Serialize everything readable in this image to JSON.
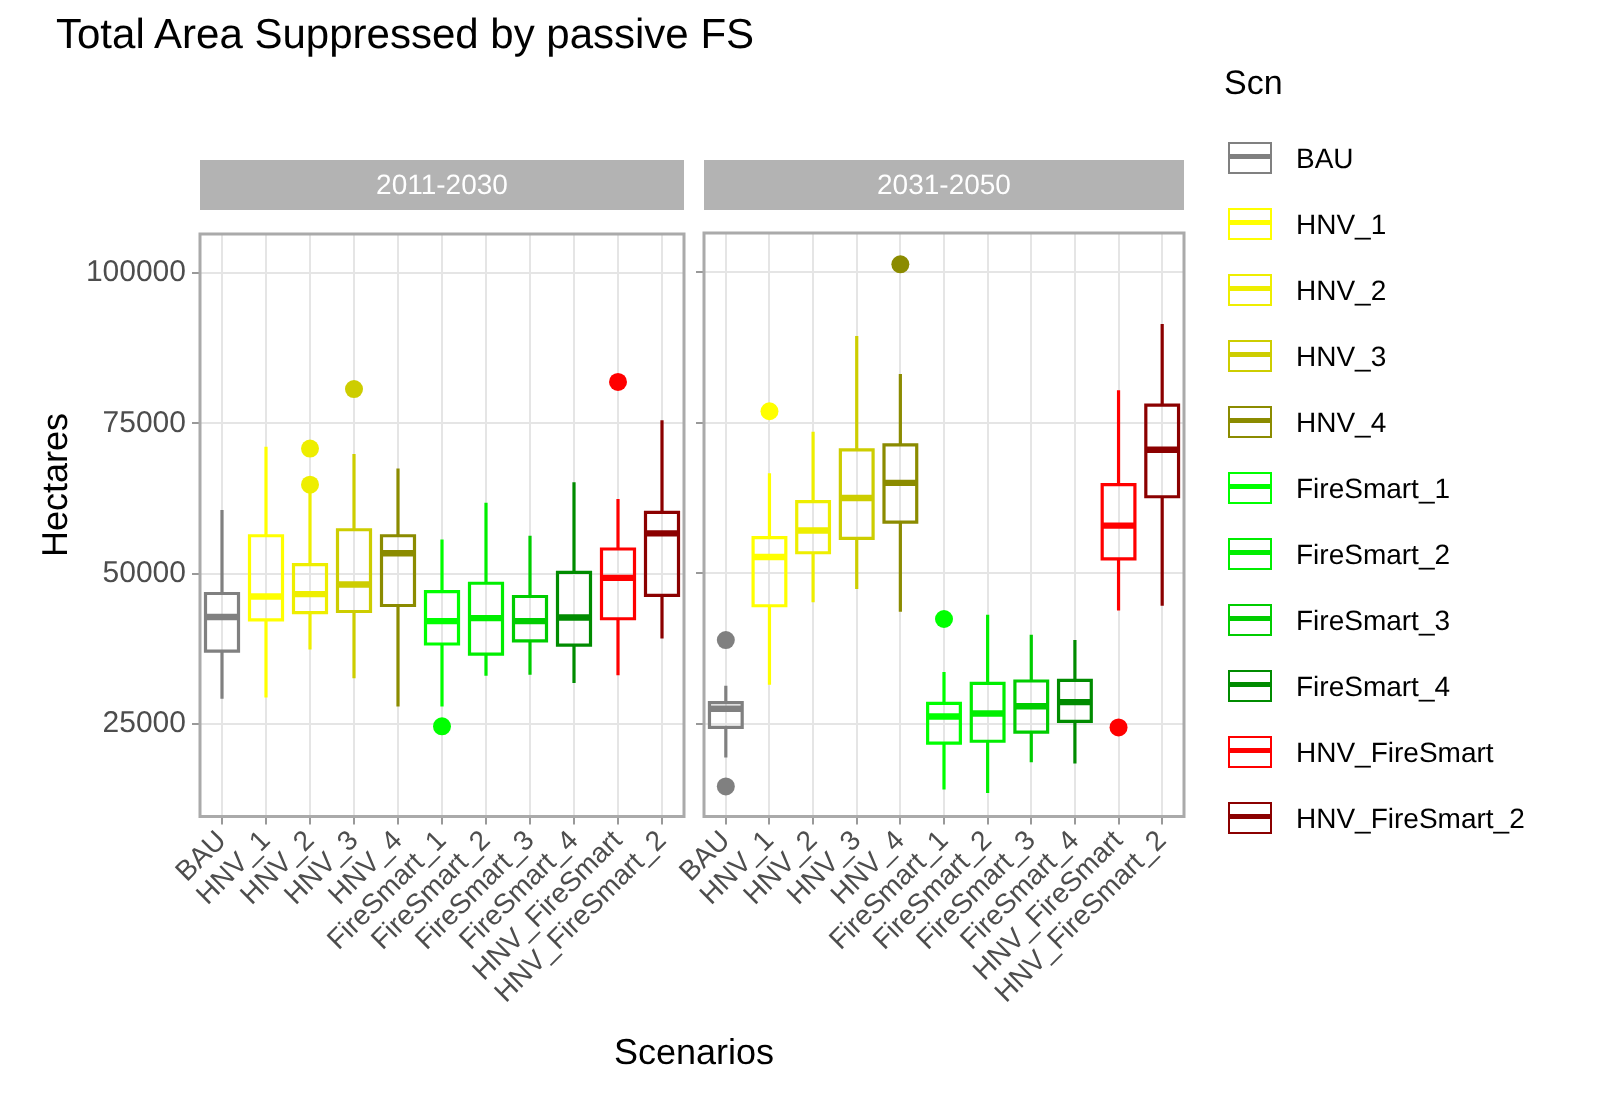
{
  "chart_data": [
    {
      "type": "box",
      "title": "Total Area Suppressed by passive FS",
      "subtitle": "2011-2030",
      "xlabel": "Scenarios",
      "ylabel": "Hectares",
      "categories": [
        "BAU",
        "HNV_1",
        "HNV_2",
        "HNV_3",
        "HNV_4",
        "FireSmart_1",
        "FireSmart_2",
        "FireSmart_3",
        "FireSmart_4",
        "HNV_FireSmart",
        "HNV_FireSmart_2"
      ],
      "series": [
        {
          "name": "BAU",
          "color": "#808080",
          "boxes": [
            {
              "low": 29200,
              "q1": 37100,
              "median": 42800,
              "q3": 46700,
              "high": 60600
            },
            null,
            null,
            null,
            null,
            null,
            null,
            null,
            null,
            null,
            null
          ]
        },
        {
          "name": "HNV_1",
          "color": "#ffff00",
          "boxes": [
            null,
            {
              "low": 29400,
              "q1": 42300,
              "median": 46200,
              "q3": 56300,
              "high": 71100
            },
            null,
            null,
            null,
            null,
            null,
            null,
            null,
            null,
            null
          ]
        },
        {
          "name": "HNV_2",
          "color": "#eeee00",
          "boxes": [
            null,
            null,
            {
              "low": 37400,
              "q1": 43500,
              "median": 46600,
              "q3": 51500,
              "high": 63700,
              "outliers": [
                64800,
                70800
              ]
            },
            null,
            null,
            null,
            null,
            null,
            null,
            null,
            null
          ]
        },
        {
          "name": "HNV_3",
          "color": "#cdcd00",
          "boxes": [
            null,
            null,
            null,
            {
              "low": 32600,
              "q1": 43700,
              "median": 48200,
              "q3": 57300,
              "high": 69900,
              "outliers": [
                80700
              ]
            },
            null,
            null,
            null,
            null,
            null,
            null,
            null
          ]
        },
        {
          "name": "HNV_4",
          "color": "#8b8b00",
          "boxes": [
            null,
            null,
            null,
            null,
            {
              "low": 27900,
              "q1": 44700,
              "median": 53400,
              "q3": 56300,
              "high": 67500
            },
            null,
            null,
            null,
            null,
            null,
            null
          ]
        },
        {
          "name": "FireSmart_1",
          "color": "#00ff00",
          "boxes": [
            null,
            null,
            null,
            null,
            null,
            {
              "low": 27900,
              "q1": 38300,
              "median": 42100,
              "q3": 47000,
              "high": 55700,
              "outliers": [
                24600
              ]
            },
            null,
            null,
            null,
            null,
            null
          ]
        },
        {
          "name": "FireSmart_2",
          "color": "#00ee00",
          "boxes": [
            null,
            null,
            null,
            null,
            null,
            null,
            {
              "low": 33000,
              "q1": 36600,
              "median": 42600,
              "q3": 48400,
              "high": 61800
            },
            null,
            null,
            null,
            null
          ]
        },
        {
          "name": "FireSmart_3",
          "color": "#00cd00",
          "boxes": [
            null,
            null,
            null,
            null,
            null,
            null,
            null,
            {
              "low": 33200,
              "q1": 38800,
              "median": 42100,
              "q3": 46200,
              "high": 56300
            },
            null,
            null,
            null
          ]
        },
        {
          "name": "FireSmart_4",
          "color": "#008b00",
          "boxes": [
            null,
            null,
            null,
            null,
            null,
            null,
            null,
            null,
            {
              "low": 31800,
              "q1": 38100,
              "median": 42700,
              "q3": 50200,
              "high": 65200
            },
            null,
            null
          ]
        },
        {
          "name": "HNV_FireSmart",
          "color": "#ff0000",
          "boxes": [
            null,
            null,
            null,
            null,
            null,
            null,
            null,
            null,
            null,
            {
              "low": 33100,
              "q1": 42500,
              "median": 49300,
              "q3": 54100,
              "high": 62400,
              "outliers": [
                81900
              ]
            },
            null
          ]
        },
        {
          "name": "HNV_FireSmart_2",
          "color": "#8b0000",
          "boxes": [
            null,
            null,
            null,
            null,
            null,
            null,
            null,
            null,
            null,
            null,
            {
              "low": 39200,
              "q1": 46400,
              "median": 56700,
              "q3": 60200,
              "high": 75500
            }
          ]
        }
      ],
      "ylim": [
        9600,
        106500
      ],
      "yticks": [
        25000,
        50000,
        75000,
        100000
      ],
      "grid": true,
      "legend": "right"
    },
    {
      "type": "box",
      "subtitle": "2031-2050",
      "categories": [
        "BAU",
        "HNV_1",
        "HNV_2",
        "HNV_3",
        "HNV_4",
        "FireSmart_1",
        "FireSmart_2",
        "FireSmart_3",
        "FireSmart_4",
        "HNV_FireSmart",
        "HNV_FireSmart_2"
      ],
      "series": [
        {
          "name": "BAU",
          "color": "#808080",
          "boxes": [
            {
              "low": 19400,
              "q1": 24400,
              "median": 27500,
              "q3": 28500,
              "high": 31300,
              "outliers": [
                38900,
                14600
              ]
            },
            null,
            null,
            null,
            null,
            null,
            null,
            null,
            null,
            null,
            null
          ]
        },
        {
          "name": "HNV_1",
          "color": "#ffff00",
          "boxes": [
            null,
            {
              "low": 31500,
              "q1": 44600,
              "median": 52700,
              "q3": 55900,
              "high": 66600,
              "outliers": [
                76900
              ]
            },
            null,
            null,
            null,
            null,
            null,
            null,
            null,
            null,
            null
          ]
        },
        {
          "name": "HNV_2",
          "color": "#eeee00",
          "boxes": [
            null,
            null,
            {
              "low": 45200,
              "q1": 53400,
              "median": 57100,
              "q3": 61900,
              "high": 73500
            },
            null,
            null,
            null,
            null,
            null,
            null,
            null,
            null
          ]
        },
        {
          "name": "HNV_3",
          "color": "#cdcd00",
          "boxes": [
            null,
            null,
            null,
            {
              "low": 47400,
              "q1": 55800,
              "median": 62500,
              "q3": 70500,
              "high": 89400
            },
            null,
            null,
            null,
            null,
            null,
            null,
            null
          ]
        },
        {
          "name": "HNV_4",
          "color": "#8b8b00",
          "boxes": [
            null,
            null,
            null,
            null,
            {
              "low": 43600,
              "q1": 58500,
              "median": 65000,
              "q3": 71300,
              "high": 83100,
              "outliers": [
                101300
              ]
            },
            null,
            null,
            null,
            null,
            null,
            null
          ]
        },
        {
          "name": "FireSmart_1",
          "color": "#00ff00",
          "boxes": [
            null,
            null,
            null,
            null,
            null,
            {
              "low": 14100,
              "q1": 21800,
              "median": 26200,
              "q3": 28400,
              "high": 33600,
              "outliers": [
                42400
              ]
            },
            null,
            null,
            null,
            null,
            null
          ]
        },
        {
          "name": "FireSmart_2",
          "color": "#00ee00",
          "boxes": [
            null,
            null,
            null,
            null,
            null,
            null,
            {
              "low": 13500,
              "q1": 22100,
              "median": 26700,
              "q3": 31700,
              "high": 43100
            },
            null,
            null,
            null,
            null
          ]
        },
        {
          "name": "FireSmart_3",
          "color": "#00cd00",
          "boxes": [
            null,
            null,
            null,
            null,
            null,
            null,
            null,
            {
              "low": 18600,
              "q1": 23600,
              "median": 27900,
              "q3": 32100,
              "high": 39800
            },
            null,
            null,
            null
          ]
        },
        {
          "name": "FireSmart_4",
          "color": "#008b00",
          "boxes": [
            null,
            null,
            null,
            null,
            null,
            null,
            null,
            null,
            {
              "low": 18400,
              "q1": 25400,
              "median": 28600,
              "q3": 32200,
              "high": 38900
            },
            null,
            null
          ]
        },
        {
          "name": "HNV_FireSmart",
          "color": "#ff0000",
          "boxes": [
            null,
            null,
            null,
            null,
            null,
            null,
            null,
            null,
            null,
            {
              "low": 43800,
              "q1": 52400,
              "median": 57900,
              "q3": 64700,
              "high": 80400,
              "outliers": [
                24400
              ]
            },
            null
          ]
        },
        {
          "name": "HNV_FireSmart_2",
          "color": "#8b0000",
          "boxes": [
            null,
            null,
            null,
            null,
            null,
            null,
            null,
            null,
            null,
            null,
            {
              "low": 44600,
              "q1": 62700,
              "median": 70500,
              "q3": 77900,
              "high": 91400
            }
          ]
        }
      ],
      "ylim": [
        9600,
        106500
      ],
      "yticks": [
        25000,
        50000,
        75000,
        100000
      ],
      "grid": true,
      "tick_labels": "x",
      "legend": "right",
      "legend_title": "Scn"
    }
  ]
}
